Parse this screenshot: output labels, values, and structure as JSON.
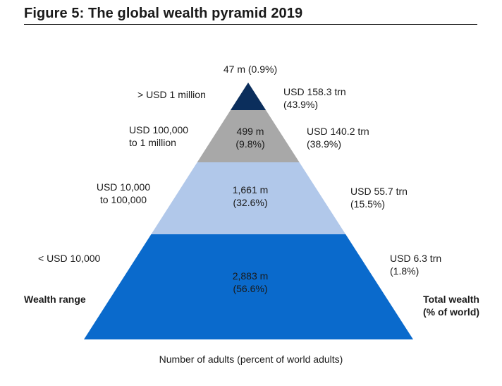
{
  "title": "Figure 5: The global wealth pyramid 2019",
  "chart_data": {
    "type": "pyramid",
    "title": "Figure 5: The global wealth pyramid 2019",
    "xlabel": "Number of adults (percent of world adults)",
    "left_axis_label": "Wealth range",
    "right_axis_label": [
      "Total wealth",
      "(% of world)"
    ],
    "tiers": [
      {
        "wealth_range": [
          "> USD 1 million"
        ],
        "adults_label": [
          "47 m (0.9%)"
        ],
        "adults_millions": 47,
        "adults_pct": 0.9,
        "wealth_label": [
          "USD 158.3 trn",
          "(43.9%)"
        ],
        "wealth_trn": 158.3,
        "wealth_pct": 43.9,
        "color": "#0b2e5c"
      },
      {
        "wealth_range": [
          "USD 100,000",
          "to 1 million"
        ],
        "adults_label": [
          "499 m",
          "(9.8%)"
        ],
        "adults_millions": 499,
        "adults_pct": 9.8,
        "wealth_label": [
          "USD 140.2 trn",
          "(38.9%)"
        ],
        "wealth_trn": 140.2,
        "wealth_pct": 38.9,
        "color": "#a8a8a8"
      },
      {
        "wealth_range": [
          "USD 10,000",
          "to 100,000"
        ],
        "adults_label": [
          "1,661 m",
          "(32.6%)"
        ],
        "adults_millions": 1661,
        "adults_pct": 32.6,
        "wealth_label": [
          "USD 55.7 trn",
          "(15.5%)"
        ],
        "wealth_trn": 55.7,
        "wealth_pct": 15.5,
        "color": "#b1c8ea"
      },
      {
        "wealth_range": [
          "< USD 10,000"
        ],
        "adults_label": [
          "2,883 m",
          "(56.6%)"
        ],
        "adults_millions": 2883,
        "adults_pct": 56.6,
        "wealth_label": [
          "USD 6.3 trn",
          "(1.8%)"
        ],
        "wealth_trn": 6.3,
        "wealth_pct": 1.8,
        "color": "#0a6acc"
      }
    ]
  }
}
